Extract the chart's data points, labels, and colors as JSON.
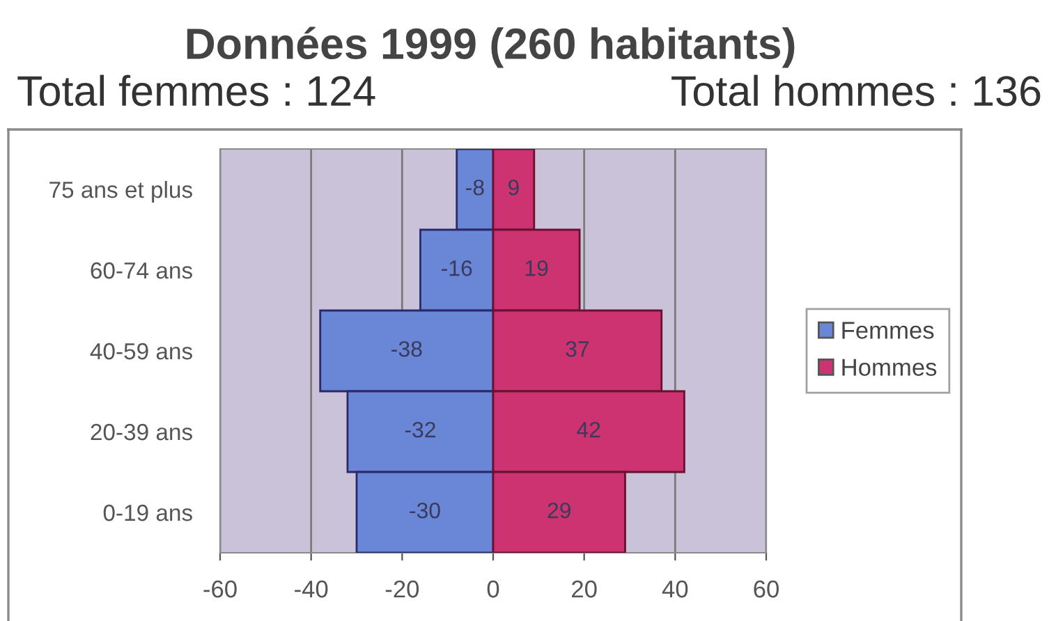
{
  "chart_data": {
    "type": "bar",
    "orientation": "horizontal",
    "stacked": true,
    "title": "Données 1999 (260 habitants)",
    "annotations": [
      "Total femmes : 124",
      "Total hommes : 136"
    ],
    "categories": [
      "75 ans et plus",
      "60-74 ans",
      "40-59 ans",
      "20-39 ans",
      "0-19 ans"
    ],
    "series": [
      {
        "name": "Femmes",
        "color": "#6a86d6",
        "values": [
          -8,
          -16,
          -38,
          -32,
          -30
        ]
      },
      {
        "name": "Hommes",
        "color": "#cc3370",
        "values": [
          9,
          19,
          37,
          42,
          29
        ]
      }
    ],
    "xlim": [
      -60,
      60
    ],
    "xticks": [
      -60,
      -40,
      -20,
      0,
      20,
      40,
      60
    ],
    "grid": "x",
    "legend": "right",
    "data_labels": true
  }
}
